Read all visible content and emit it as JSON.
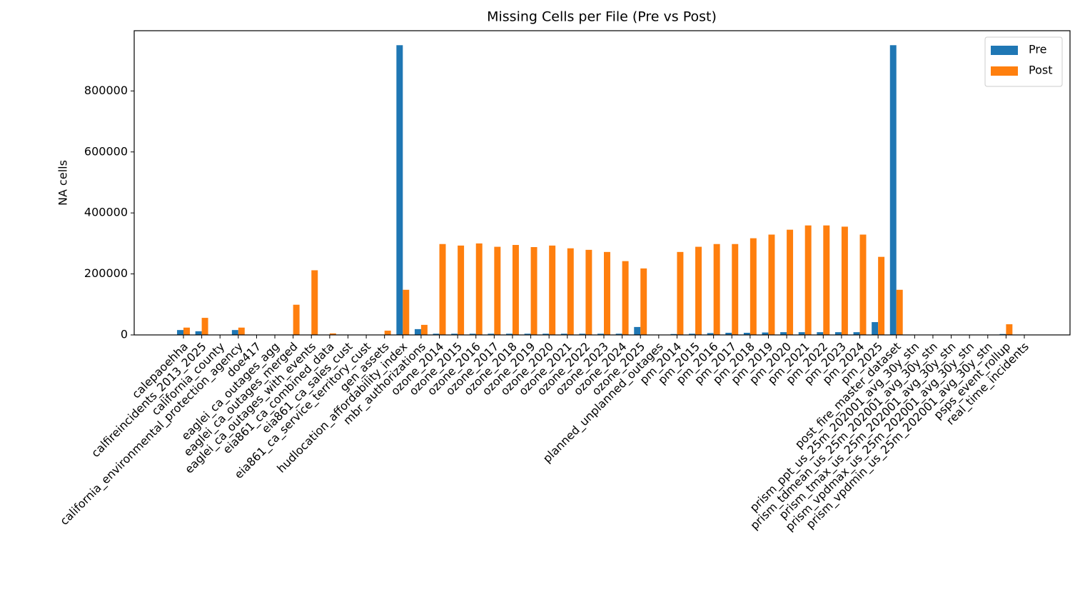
{
  "chart_data": {
    "type": "bar",
    "title": "Missing Cells per File (Pre vs Post)",
    "ylabel": "NA cells",
    "categories": [
      "calepaoehha",
      "calfireincidents_2013_2025",
      "california_county",
      "california_environmental_protection_agency",
      "doe417",
      "eaglei_ca_outages_agg",
      "eaglei_ca_outages_merged",
      "eaglei_ca_outages_with_events",
      "eia861_ca_combined_data",
      "eia861_ca_sales_cust",
      "eia861_ca_service_territory_cust",
      "gen_assets",
      "hudlocation_affordability_index",
      "mbr_authorizations",
      "ozone_2014",
      "ozone_2015",
      "ozone_2016",
      "ozone_2017",
      "ozone_2018",
      "ozone_2019",
      "ozone_2020",
      "ozone_2021",
      "ozone_2022",
      "ozone_2023",
      "ozone_2024",
      "ozone_2025",
      "planned_unplanned_outages",
      "pm_2014",
      "pm_2015",
      "pm_2016",
      "pm_2017",
      "pm_2018",
      "pm_2019",
      "pm_2020",
      "pm_2021",
      "pm_2022",
      "pm_2023",
      "pm_2024",
      "pm_2025",
      "post_fire_master_dataset",
      "prism_ppt_us_25m_202001_avg_30y_stn",
      "prism_tdmean_us_25m_202001_avg_30y_stn",
      "prism_tmax_us_25m_202001_avg_30y_stn",
      "prism_vpdmax_us_25m_202001_avg_30y_stn",
      "prism_vpdmin_us_25m_202001_avg_30y_stn",
      "psps_event_rollup",
      "real_time_incidents"
    ],
    "series": [
      {
        "name": "Pre",
        "color": "#1f77b4",
        "values": [
          16000,
          12000,
          0,
          16000,
          0,
          0,
          0,
          0,
          0,
          0,
          0,
          0,
          950000,
          19000,
          4000,
          4000,
          4000,
          4000,
          4000,
          4000,
          4000,
          4000,
          4000,
          4000,
          4000,
          26000,
          0,
          3000,
          4000,
          6000,
          7000,
          7000,
          8000,
          9000,
          9000,
          9000,
          9000,
          9000,
          42000,
          950000,
          0,
          0,
          0,
          0,
          0,
          3000,
          0
        ]
      },
      {
        "name": "Post",
        "color": "#ff7f0e",
        "values": [
          24000,
          56000,
          0,
          24000,
          0,
          0,
          99000,
          212000,
          5000,
          0,
          1000,
          14000,
          148000,
          33000,
          298000,
          293000,
          300000,
          289000,
          295000,
          288000,
          293000,
          284000,
          279000,
          272000,
          242000,
          218000,
          0,
          272000,
          289000,
          298000,
          298000,
          317000,
          329000,
          345000,
          359000,
          359000,
          355000,
          329000,
          256000,
          148000,
          0,
          0,
          0,
          0,
          0,
          35000,
          0
        ]
      }
    ],
    "ylim": [
      0,
      997500
    ],
    "yticks": [
      0,
      200000,
      400000,
      600000,
      800000
    ],
    "legend": "upper right"
  }
}
